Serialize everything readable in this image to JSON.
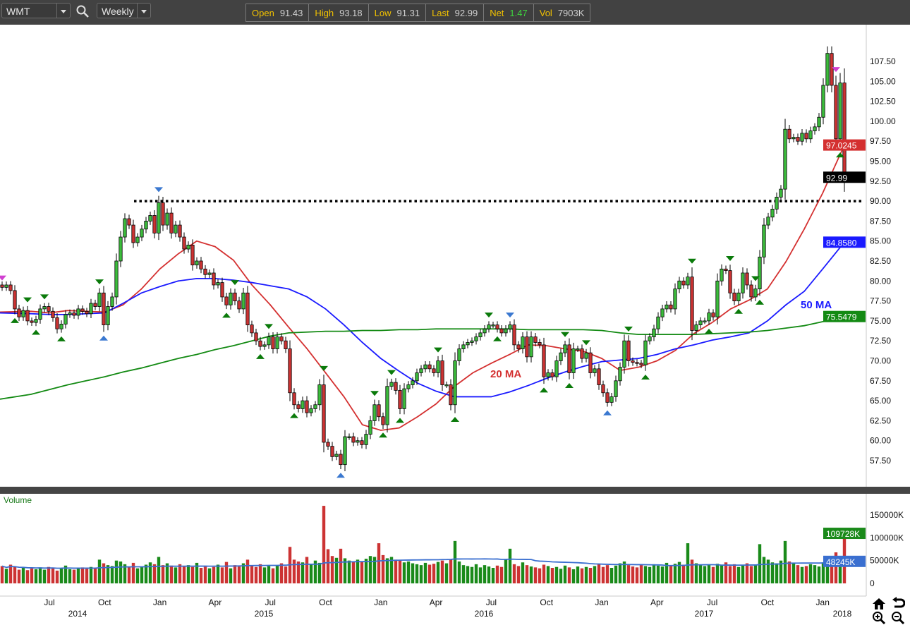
{
  "toolbar": {
    "symbol": "WMT",
    "interval": "Weekly",
    "search_icon": "magnifier-icon",
    "quote": [
      {
        "label": "Open",
        "value": "91.43"
      },
      {
        "label": "High",
        "value": "93.18"
      },
      {
        "label": "Low",
        "value": "91.31"
      },
      {
        "label": "Last",
        "value": "92.99"
      },
      {
        "label": "Net",
        "value": "1.47"
      },
      {
        "label": "Vol",
        "value": "7903K"
      }
    ]
  },
  "colors": {
    "up": "#3cbc3c",
    "down": "#cc3333",
    "ma20": "#d43030",
    "ma50": "#1a1aff",
    "ma200": "#138a13",
    "signal_green": "#0a7a0a",
    "signal_blue": "#3a78d0",
    "signal_magenta": "#d040d0",
    "volume_ma": "#3a6fd0"
  },
  "chart_data": [
    {
      "type": "candlestick",
      "title": "",
      "price_ticks": [
        "57.50",
        "60.00",
        "62.50",
        "65.00",
        "67.50",
        "70.00",
        "72.50",
        "75.00",
        "77.50",
        "80.00",
        "82.50",
        "85.00",
        "87.50",
        "90.00",
        "92.50",
        "95.00",
        "97.50",
        "100.00",
        "102.50",
        "105.00",
        "107.50"
      ],
      "ylim": [
        55.5,
        110.5
      ],
      "x_ticks": [
        {
          "month": "2014-07",
          "label": "Jul"
        },
        {
          "month": "2014-10",
          "label": "Oct"
        },
        {
          "month": "2015-01",
          "label": "Jan"
        },
        {
          "month": "2015-04",
          "label": "Apr"
        },
        {
          "month": "2015-07",
          "label": "Jul"
        },
        {
          "month": "2015-10",
          "label": "Oct"
        },
        {
          "month": "2016-01",
          "label": "Jan"
        },
        {
          "month": "2016-04",
          "label": "Apr"
        },
        {
          "month": "2016-07",
          "label": "Jul"
        },
        {
          "month": "2016-10",
          "label": "Oct"
        },
        {
          "month": "2017-01",
          "label": "Jan"
        },
        {
          "month": "2017-04",
          "label": "Apr"
        },
        {
          "month": "2017-07",
          "label": "Jul"
        },
        {
          "month": "2017-10",
          "label": "Oct"
        },
        {
          "month": "2018-01",
          "label": "Jan"
        }
      ],
      "year_labels": [
        "2014",
        "2015",
        "2016",
        "2017",
        "2018"
      ],
      "weekly_close": [
        79.2,
        79.5,
        78.8,
        76.5,
        75.5,
        76.3,
        75.0,
        74.8,
        75.2,
        76.5,
        76.8,
        76.2,
        75.4,
        74.0,
        74.6,
        75.8,
        76.0,
        75.7,
        76.5,
        76.2,
        75.9,
        77.2,
        76.8,
        78.5,
        74.5,
        76.8,
        78.0,
        82.5,
        85.5,
        87.8,
        87.0,
        84.8,
        85.5,
        86.5,
        87.5,
        88.2,
        86.0,
        89.8,
        87.0,
        88.5,
        86.0,
        87.0,
        85.5,
        84.0,
        84.5,
        82.0,
        82.5,
        81.5,
        80.8,
        81.0,
        79.5,
        79.8,
        78.0,
        77.0,
        78.5,
        77.5,
        76.5,
        78.5,
        74.5,
        73.5,
        72.5,
        71.8,
        72.0,
        73.0,
        71.5,
        73.0,
        72.5,
        71.5,
        66.0,
        64.5,
        64.0,
        65.0,
        63.5,
        64.0,
        64.5,
        67.0,
        59.8,
        59.3,
        58.0,
        58.3,
        57.0,
        60.5,
        60.5,
        59.8,
        60.0,
        59.5,
        60.8,
        62.5,
        64.5,
        63.0,
        62.0,
        66.8,
        67.3,
        66.3,
        64.0,
        66.5,
        67.0,
        67.5,
        68.5,
        69.0,
        69.5,
        69.0,
        68.5,
        70.0,
        67.0,
        67.0,
        64.5,
        70.0,
        71.5,
        72.0,
        72.3,
        72.5,
        73.0,
        73.5,
        74.0,
        74.5,
        74.5,
        74.0,
        73.5,
        74.0,
        74.5,
        72.0,
        71.5,
        73.0,
        70.5,
        73.0,
        72.3,
        72.0,
        68.0,
        68.5,
        68.0,
        70.0,
        71.0,
        72.0,
        68.5,
        71.5,
        71.5,
        70.3,
        71.0,
        68.5,
        69.0,
        67.0,
        66.0,
        64.8,
        65.5,
        67.5,
        69.2,
        72.5,
        70.0,
        69.8,
        69.7,
        69.5,
        72.5,
        73.0,
        74.0,
        75.5,
        76.5,
        77.0,
        76.5,
        79.0,
        80.0,
        79.5,
        80.5,
        73.8,
        74.5,
        75.0,
        75.0,
        76.0,
        75.5,
        80.0,
        81.5,
        81.3,
        78.5,
        77.5,
        78.5,
        81.0,
        79.5,
        78.0,
        79.0,
        83.0,
        87.0,
        88.0,
        89.0,
        90.5,
        91.5,
        99.0,
        97.8,
        98.0,
        97.5,
        98.5,
        97.8,
        98.8,
        99.3,
        100.5,
        104.5,
        108.5,
        104.5,
        97.8,
        104.8,
        92.99
      ],
      "moving_averages": [
        {
          "name": "20 MA",
          "color_key": "ma20",
          "last": "97.0245",
          "values": {
            "2014-05": 76.1,
            "2014-06": 76.2,
            "2014-07": 76.0,
            "2014-08": 76.3,
            "2014-09": 76.2,
            "2014-10": 76.1,
            "2014-11": 77.0,
            "2014-12": 79.0,
            "2015-01": 81.5,
            "2015-02": 83.4,
            "2015-03": 85.0,
            "2015-04": 84.3,
            "2015-05": 82.6,
            "2015-06": 79.5,
            "2015-07": 77.0,
            "2015-08": 74.2,
            "2015-09": 71.5,
            "2015-10": 68.5,
            "2015-11": 65.5,
            "2015-12": 62.0,
            "2016-01": 61.3,
            "2016-02": 61.6,
            "2016-03": 63.0,
            "2016-04": 64.6,
            "2016-05": 66.8,
            "2016-06": 68.5,
            "2016-07": 69.7,
            "2016-08": 70.8,
            "2016-09": 72.0,
            "2016-10": 71.9,
            "2016-11": 71.5,
            "2016-12": 71.2,
            "2017-01": 70.3,
            "2017-02": 68.8,
            "2017-03": 69.2,
            "2017-04": 70.0,
            "2017-05": 71.3,
            "2017-06": 73.4,
            "2017-07": 74.8,
            "2017-08": 76.5,
            "2017-09": 77.6,
            "2017-10": 79.0,
            "2017-11": 82.4,
            "2017-12": 86.5,
            "2018-01": 91.0,
            "2018-02": 96.8
          }
        },
        {
          "name": "50 MA",
          "color_key": "ma50",
          "last": "84.8580",
          "values": {
            "2014-05": 76.0,
            "2014-06": 75.9,
            "2014-07": 75.8,
            "2014-08": 75.8,
            "2014-09": 75.9,
            "2014-10": 76.0,
            "2014-11": 77.2,
            "2014-12": 78.5,
            "2015-01": 79.3,
            "2015-02": 80.0,
            "2015-03": 80.3,
            "2015-04": 80.3,
            "2015-05": 80.1,
            "2015-06": 79.8,
            "2015-07": 79.4,
            "2015-08": 79.0,
            "2015-09": 78.0,
            "2015-10": 76.5,
            "2015-11": 74.5,
            "2015-12": 72.3,
            "2016-01": 70.3,
            "2016-02": 68.7,
            "2016-03": 67.2,
            "2016-04": 66.2,
            "2016-05": 65.5,
            "2016-06": 65.5,
            "2016-07": 65.5,
            "2016-08": 66.1,
            "2016-09": 66.9,
            "2016-10": 67.8,
            "2016-11": 68.6,
            "2016-12": 69.3,
            "2017-01": 69.9,
            "2017-02": 70.1,
            "2017-03": 70.3,
            "2017-04": 70.8,
            "2017-05": 71.5,
            "2017-06": 72.0,
            "2017-07": 72.6,
            "2017-08": 73.0,
            "2017-09": 73.5,
            "2017-10": 75.0,
            "2017-11": 77.0,
            "2017-12": 78.7,
            "2018-01": 81.5,
            "2018-02": 84.5
          }
        },
        {
          "name": "",
          "color_key": "ma200",
          "last": "75.5479",
          "values": {
            "2014-05": 65.2,
            "2014-06": 65.8,
            "2014-07": 66.4,
            "2014-08": 67.0,
            "2014-09": 67.5,
            "2014-10": 68.0,
            "2014-11": 68.6,
            "2014-12": 69.1,
            "2015-01": 69.7,
            "2015-02": 70.3,
            "2015-03": 70.8,
            "2015-04": 71.4,
            "2015-05": 71.9,
            "2015-06": 72.5,
            "2015-07": 73.1,
            "2015-08": 73.5,
            "2015-09": 73.6,
            "2015-10": 73.7,
            "2015-11": 73.7,
            "2015-12": 73.8,
            "2016-01": 73.8,
            "2016-02": 73.9,
            "2016-03": 73.9,
            "2016-04": 74.0,
            "2016-05": 74.0,
            "2016-06": 74.0,
            "2016-07": 74.0,
            "2016-08": 74.0,
            "2016-09": 73.9,
            "2016-10": 73.9,
            "2016-11": 73.9,
            "2016-12": 73.9,
            "2017-01": 73.8,
            "2017-02": 73.5,
            "2017-03": 73.3,
            "2017-04": 73.3,
            "2017-05": 73.3,
            "2017-06": 73.3,
            "2017-07": 73.4,
            "2017-08": 73.5,
            "2017-09": 73.6,
            "2017-10": 73.8,
            "2017-11": 74.1,
            "2017-12": 74.4,
            "2018-01": 74.9,
            "2018-02": 75.5
          }
        }
      ],
      "last_price_badge": "92.99",
      "horizontal_level": 90.0,
      "annotations": [
        {
          "text": "20 MA",
          "color_key": "ma20"
        },
        {
          "text": "50 MA",
          "color_key": "ma50"
        }
      ],
      "signals": {
        "down_magenta": [
          0,
          197
        ],
        "down_blue": [
          37,
          120
        ],
        "up_blue": [
          24,
          80,
          143
        ],
        "down_green": [
          6,
          10,
          23,
          55,
          63,
          76,
          88,
          92,
          103,
          115,
          133,
          138,
          148,
          163,
          172,
          178
        ],
        "up_green": [
          3,
          8,
          14,
          53,
          61,
          69,
          90,
          94,
          107,
          117,
          128,
          134,
          152,
          167,
          174,
          179,
          198
        ]
      }
    },
    {
      "type": "bar",
      "title": "Volume",
      "unit": "K",
      "ticks": [
        "150000K",
        "100000K",
        "50000K",
        "0"
      ],
      "ylim": [
        0,
        170000
      ],
      "values": [
        38000,
        32000,
        41000,
        36000,
        30000,
        34000,
        29000,
        33000,
        31000,
        35000,
        30000,
        36000,
        33000,
        28000,
        34000,
        39000,
        31000,
        30000,
        33000,
        35000,
        32000,
        36000,
        34000,
        52000,
        44000,
        40000,
        38000,
        50000,
        48000,
        42000,
        36000,
        45000,
        33000,
        37000,
        41000,
        46000,
        42000,
        58000,
        40000,
        44000,
        39000,
        35000,
        42000,
        37000,
        40000,
        36000,
        45000,
        34000,
        38000,
        33000,
        36000,
        41000,
        35000,
        47000,
        33000,
        40000,
        37000,
        44000,
        52000,
        39000,
        36000,
        42000,
        35000,
        38000,
        33000,
        40000,
        44000,
        37000,
        80000,
        52000,
        48000,
        46000,
        58000,
        42000,
        50000,
        45000,
        170000,
        75000,
        60000,
        56000,
        76000,
        55000,
        50000,
        48000,
        52000,
        47000,
        54000,
        60000,
        58000,
        88000,
        62000,
        55000,
        58000,
        52000,
        50000,
        46000,
        48000,
        44000,
        42000,
        40000,
        45000,
        41000,
        43000,
        47000,
        50000,
        44000,
        52000,
        93000,
        48000,
        40000,
        38000,
        36000,
        42000,
        35000,
        40000,
        37000,
        34000,
        39000,
        36000,
        52000,
        76000,
        42000,
        38000,
        46000,
        40000,
        37000,
        35000,
        33000,
        41000,
        38000,
        34000,
        36000,
        32000,
        39000,
        35000,
        31000,
        37000,
        33000,
        36000,
        34000,
        38000,
        42000,
        36000,
        40000,
        34000,
        39000,
        44000,
        48000,
        40000,
        37000,
        35000,
        41000,
        38000,
        36000,
        42000,
        39000,
        37000,
        45000,
        40000,
        43000,
        47000,
        41000,
        88000,
        52000,
        44000,
        40000,
        38000,
        42000,
        36000,
        43000,
        40000,
        46000,
        38000,
        42000,
        36000,
        39000,
        44000,
        38000,
        41000,
        86000,
        58000,
        52000,
        46000,
        44000,
        50000,
        93000,
        48000,
        45000,
        40000,
        36000,
        38000,
        42000,
        40000,
        37000,
        46000,
        42000,
        43000,
        68000,
        40000,
        109728
      ],
      "last_badge": "109728K",
      "ma_badge": "48245K"
    }
  ],
  "nav_icons": [
    "home-icon",
    "undo-icon",
    "zoom-in-icon",
    "zoom-out-icon"
  ]
}
